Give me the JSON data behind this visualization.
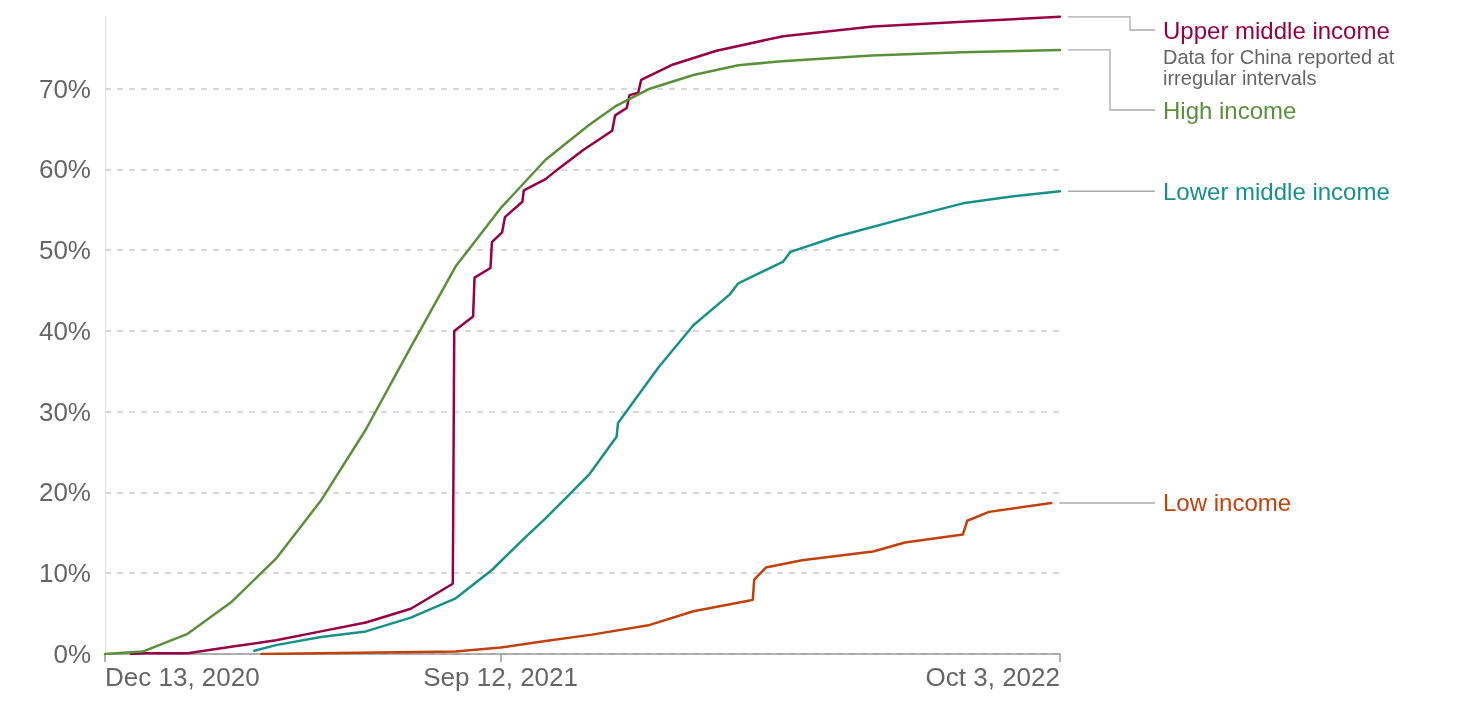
{
  "chart_data": {
    "type": "line",
    "xlim": [
      "2020-12-13",
      "2022-10-03"
    ],
    "xticks": [
      {
        "value": "2020-12-13",
        "label": "Dec 13, 2020"
      },
      {
        "value": "2021-09-12",
        "label": "Sep 12, 2021"
      },
      {
        "value": "2022-10-03",
        "label": "Oct 3, 2022"
      }
    ],
    "yticks": [
      {
        "value": 0,
        "label": "0%"
      },
      {
        "value": 10,
        "label": "10%"
      },
      {
        "value": 20,
        "label": "20%"
      },
      {
        "value": 30,
        "label": "30%"
      },
      {
        "value": 40,
        "label": "40%"
      },
      {
        "value": 50,
        "label": "50%"
      },
      {
        "value": 60,
        "label": "60%"
      },
      {
        "value": 70,
        "label": "70%"
      }
    ],
    "ylim": [
      0,
      79
    ],
    "grid": "y",
    "legend": false,
    "marker": "none",
    "line_style": "solid",
    "annotations": [
      {
        "text": "Data for China reported at irregular intervals",
        "x": "2022-10-03",
        "y": 78.9
      }
    ],
    "series": [
      {
        "name": "Upper middle income",
        "color": "#970046",
        "x": [
          "2020-12-31",
          "2021-01-08",
          "2021-02-08",
          "2021-03-10",
          "2021-04-10",
          "2021-05-11",
          "2021-06-11",
          "2021-07-12",
          "2021-08-10",
          "2021-08-11",
          "2021-08-24",
          "2021-08-25",
          "2021-09-05",
          "2021-09-06",
          "2021-09-13",
          "2021-09-15",
          "2021-09-27",
          "2021-09-28",
          "2021-10-13",
          "2021-10-22",
          "2021-11-08",
          "2021-11-28",
          "2021-11-30",
          "2021-12-08",
          "2021-12-10",
          "2021-12-16",
          "2021-12-18",
          "2022-01-09",
          "2022-02-08",
          "2022-03-26",
          "2022-05-27",
          "2022-07-28",
          "2022-10-03"
        ],
        "values": [
          0,
          0.1,
          0.1,
          0.9,
          1.7,
          2.8,
          3.9,
          5.6,
          8.7,
          40,
          41.8,
          46.6,
          47.8,
          51,
          52.2,
          54.1,
          56,
          57.4,
          58.8,
          60.1,
          62.4,
          64.8,
          66.7,
          67.6,
          69.2,
          69.5,
          71.1,
          73,
          74.7,
          76.5,
          77.7,
          78.3,
          78.9
        ]
      },
      {
        "name": "High income",
        "color": "#5b8f3a",
        "x": [
          "2020-12-13",
          "2021-01-08",
          "2021-02-08",
          "2021-03-10",
          "2021-04-10",
          "2021-05-11",
          "2021-06-11",
          "2021-07-12",
          "2021-08-12",
          "2021-09-12",
          "2021-10-13",
          "2021-11-12",
          "2021-11-30",
          "2021-12-24",
          "2022-01-23",
          "2022-02-23",
          "2022-03-25",
          "2022-05-26",
          "2022-07-27",
          "2022-10-03"
        ],
        "values": [
          0,
          0.3,
          2.5,
          6.4,
          11.8,
          19,
          27.8,
          38,
          48,
          55.2,
          61.2,
          65.5,
          67.8,
          70,
          71.7,
          72.9,
          73.4,
          74.1,
          74.5,
          74.8
        ]
      },
      {
        "name": "Lower middle income",
        "color": "#18908a",
        "x": [
          "2021-03-26",
          "2021-04-10",
          "2021-05-11",
          "2021-06-11",
          "2021-07-12",
          "2021-08-12",
          "2021-09-06",
          "2021-09-27",
          "2021-10-13",
          "2021-10-28",
          "2021-11-12",
          "2021-12-01",
          "2021-12-02",
          "2021-12-30",
          "2022-01-23",
          "2022-02-17",
          "2022-02-23",
          "2022-03-26",
          "2022-03-31",
          "2022-05-02",
          "2022-06-21",
          "2022-07-28",
          "2022-08-28",
          "2022-10-03"
        ],
        "values": [
          0.4,
          1.1,
          2.1,
          2.8,
          4.5,
          6.9,
          10.4,
          14.1,
          16.8,
          19.5,
          22.2,
          26.9,
          28.6,
          35.5,
          40.7,
          44.5,
          45.9,
          48.6,
          49.8,
          51.7,
          54.1,
          55.8,
          56.6,
          57.3
        ]
      },
      {
        "name": "Low income",
        "color": "#c0410c",
        "x": [
          "2021-03-31",
          "2021-08-12",
          "2021-09-12",
          "2021-10-13",
          "2021-11-14",
          "2021-12-24",
          "2022-01-23",
          "2022-03-02",
          "2022-03-05",
          "2022-03-06",
          "2022-03-14",
          "2022-04-08",
          "2022-05-27",
          "2022-06-18",
          "2022-07-28",
          "2022-07-31",
          "2022-08-15",
          "2022-09-27"
        ],
        "values": [
          0,
          0.3,
          0.8,
          1.6,
          2.4,
          3.6,
          5.3,
          6.6,
          6.7,
          9.2,
          10.7,
          11.6,
          12.7,
          13.8,
          14.8,
          16.5,
          17.6,
          18.7
        ]
      }
    ]
  }
}
